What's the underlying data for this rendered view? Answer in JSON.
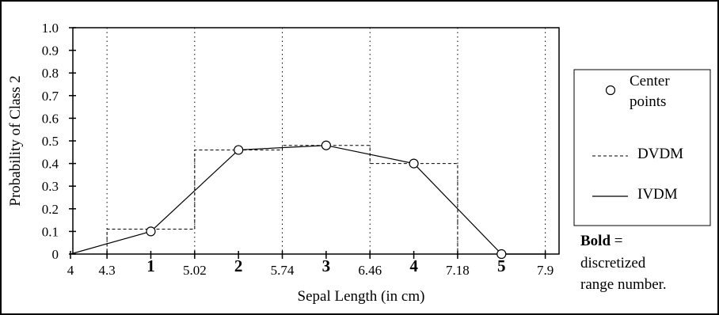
{
  "chart_data": {
    "type": "line",
    "title": "",
    "xlabel": "Sepal Length (in cm)",
    "ylabel": "Probability of Class 2",
    "xlim": [
      4.0,
      8.0
    ],
    "ylim": [
      0.0,
      1.0
    ],
    "x_ticks": [
      "4",
      "4.3",
      "5.02",
      "5.74",
      "6.46",
      "7.18",
      "7.9"
    ],
    "x_tick_values": [
      4.0,
      4.3,
      5.02,
      5.74,
      6.46,
      7.18,
      7.9
    ],
    "y_ticks": [
      "0",
      "0.1",
      "0.2",
      "0.3",
      "0.4",
      "0.5",
      "0.6",
      "0.7",
      "0.8",
      "0.9",
      "1.0"
    ],
    "y_tick_values": [
      0,
      0.1,
      0.2,
      0.3,
      0.4,
      0.5,
      0.6,
      0.7,
      0.8,
      0.9,
      1.0
    ],
    "vertical_gridlines_x": [
      4.3,
      5.02,
      5.74,
      6.46,
      7.18,
      7.9
    ],
    "range_numbers": [
      {
        "label": "1",
        "x": 4.66
      },
      {
        "label": "2",
        "x": 5.38
      },
      {
        "label": "3",
        "x": 6.1
      },
      {
        "label": "4",
        "x": 6.82
      },
      {
        "label": "5",
        "x": 7.54
      }
    ],
    "series": [
      {
        "name": "Center points",
        "style": "markers",
        "points": [
          [
            4.66,
            0.1
          ],
          [
            5.38,
            0.46
          ],
          [
            6.1,
            0.48
          ],
          [
            6.82,
            0.4
          ],
          [
            7.54,
            0.0
          ]
        ]
      },
      {
        "name": "DVDM",
        "style": "dashed-step",
        "steps": [
          {
            "x0": 4.0,
            "x1": 4.3,
            "y": 0.0
          },
          {
            "x0": 4.3,
            "x1": 5.02,
            "y": 0.11
          },
          {
            "x0": 5.02,
            "x1": 5.74,
            "y": 0.46
          },
          {
            "x0": 5.74,
            "x1": 6.46,
            "y": 0.48
          },
          {
            "x0": 6.46,
            "x1": 7.18,
            "y": 0.4
          },
          {
            "x0": 7.18,
            "x1": 7.9,
            "y": 0.0
          }
        ]
      },
      {
        "name": "IVDM",
        "style": "solid",
        "points": [
          [
            4.0,
            0.0
          ],
          [
            4.66,
            0.1
          ],
          [
            5.38,
            0.46
          ],
          [
            6.1,
            0.48
          ],
          [
            6.82,
            0.4
          ],
          [
            7.54,
            0.0
          ],
          [
            7.9,
            0.0
          ]
        ]
      }
    ],
    "legend": {
      "placement": "right",
      "entries": [
        {
          "label_lines": [
            "Center",
            "points"
          ],
          "series": "Center points"
        },
        {
          "label_lines": [
            "DVDM"
          ],
          "series": "DVDM"
        },
        {
          "label_lines": [
            "IVDM"
          ],
          "series": "IVDM"
        }
      ]
    },
    "note": {
      "bold": "Bold",
      "rest": " =",
      "lines": [
        "discretized",
        "range number."
      ]
    }
  }
}
